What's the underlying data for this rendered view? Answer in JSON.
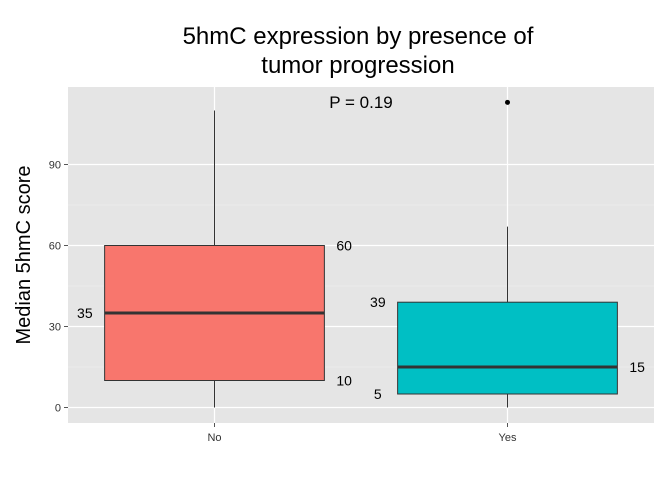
{
  "chart_data": {
    "type": "box",
    "title_lines": [
      "5hmC expression by presence of",
      "tumor progression"
    ],
    "xlabel": "",
    "ylabel": "Median 5hmC score",
    "ylim": [
      -5,
      118
    ],
    "y_ticks": [
      0,
      30,
      60,
      90
    ],
    "categories": [
      "No",
      "Yes"
    ],
    "boxes": [
      {
        "category": "No",
        "min": 0,
        "q1": 10,
        "median": 35,
        "q3": 60,
        "max": 110,
        "outliers": [],
        "color": "#F8766D",
        "labels": {
          "q1": "10",
          "median": "35",
          "q3": "60"
        }
      },
      {
        "category": "Yes",
        "min": 0,
        "q1": 5,
        "median": 15,
        "q3": 39,
        "max": 67,
        "outliers": [
          113
        ],
        "color": "#00BFC4",
        "labels": {
          "q1": "5",
          "median": "15",
          "q3": "39"
        }
      }
    ],
    "annotation": "P = 0.19",
    "grid": true,
    "panel_background": "#E5E5E5",
    "grid_color": "#FFFFFF"
  }
}
